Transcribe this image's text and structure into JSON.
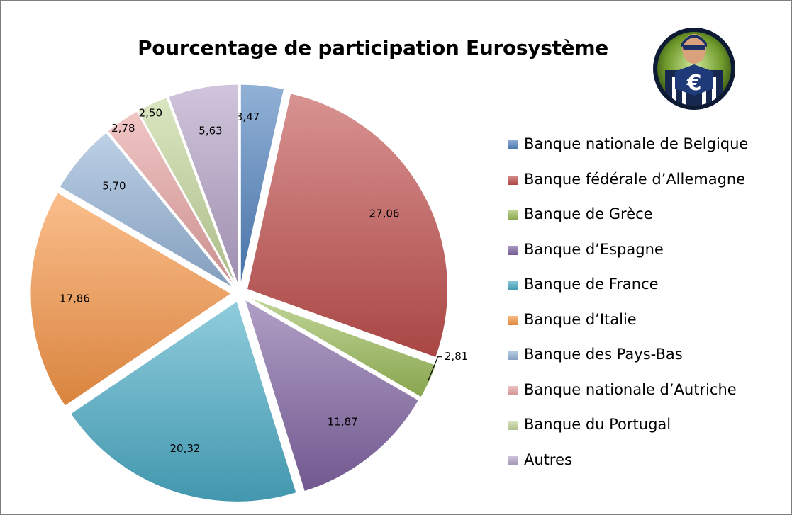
{
  "chart_data": {
    "type": "pie",
    "title": "Pourcentage de participation Eurosystème",
    "legend_position": "right",
    "exploded": true,
    "slices": [
      {
        "label": "Banque nationale de Belgique",
        "value": 3.47,
        "value_label": "3,47",
        "color": "#4f81bd"
      },
      {
        "label": "Banque fédérale d’Allemagne",
        "value": 27.06,
        "value_label": "27,06",
        "color": "#c0504d"
      },
      {
        "label": "Banque de Grèce",
        "value": 2.81,
        "value_label": "2,81",
        "color": "#9bbb59"
      },
      {
        "label": "Banque d’Espagne",
        "value": 11.87,
        "value_label": "11,87",
        "color": "#8064a2"
      },
      {
        "label": "Banque de France",
        "value": 20.32,
        "value_label": "20,32",
        "color": "#4bacc6"
      },
      {
        "label": "Banque d’Italie",
        "value": 17.86,
        "value_label": "17,86",
        "color": "#f79646"
      },
      {
        "label": "Banque des Pays-Bas",
        "value": 5.7,
        "value_label": "5,70",
        "color": "#95b3d7"
      },
      {
        "label": "Banque nationale d’Autriche",
        "value": 2.78,
        "value_label": "2,78",
        "color": "#e6a3a1"
      },
      {
        "label": "Banque du Portugal",
        "value": 2.5,
        "value_label": "2,50",
        "color": "#c3d69b"
      },
      {
        "label": "Autres",
        "value": 5.63,
        "value_label": "5,63",
        "color": "#b3a2c7"
      }
    ]
  },
  "logo": {
    "icon": "captain-euro-icon",
    "glyph": "€"
  }
}
